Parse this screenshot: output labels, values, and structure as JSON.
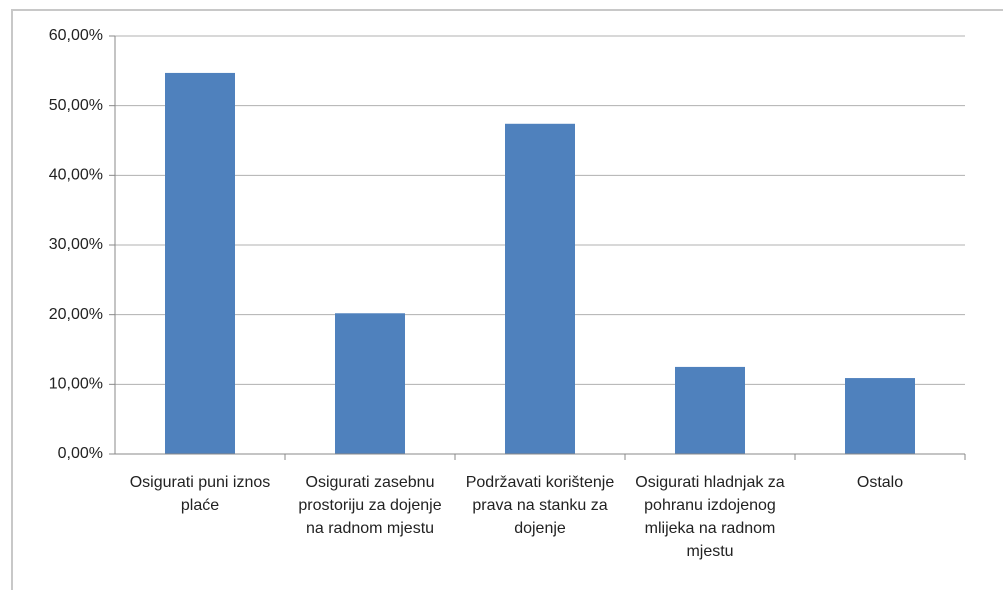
{
  "chart_data": {
    "type": "bar",
    "categories": [
      "Osigurati puni iznos plaće",
      "Osigurati zasebnu prostoriju za dojenje na radnom mjestu",
      "Podržavati korištenje prava na stanku za dojenje",
      "Osigurati hladnjak za pohranu izdojenog mlijeka na radnom mjestu",
      "Ostalo"
    ],
    "values": [
      54.7,
      20.2,
      47.4,
      12.5,
      10.9
    ],
    "color": "#4f81bd",
    "ylim": [
      0,
      60
    ],
    "yticks": [
      {
        "value": 0,
        "label": "0,00%"
      },
      {
        "value": 10,
        "label": "10,00%"
      },
      {
        "value": 20,
        "label": "20,00%"
      },
      {
        "value": 30,
        "label": "30,00%"
      },
      {
        "value": 40,
        "label": "40,00%"
      },
      {
        "value": 50,
        "label": "50,00%"
      },
      {
        "value": 60,
        "label": "60,00%"
      }
    ],
    "grid": true
  }
}
